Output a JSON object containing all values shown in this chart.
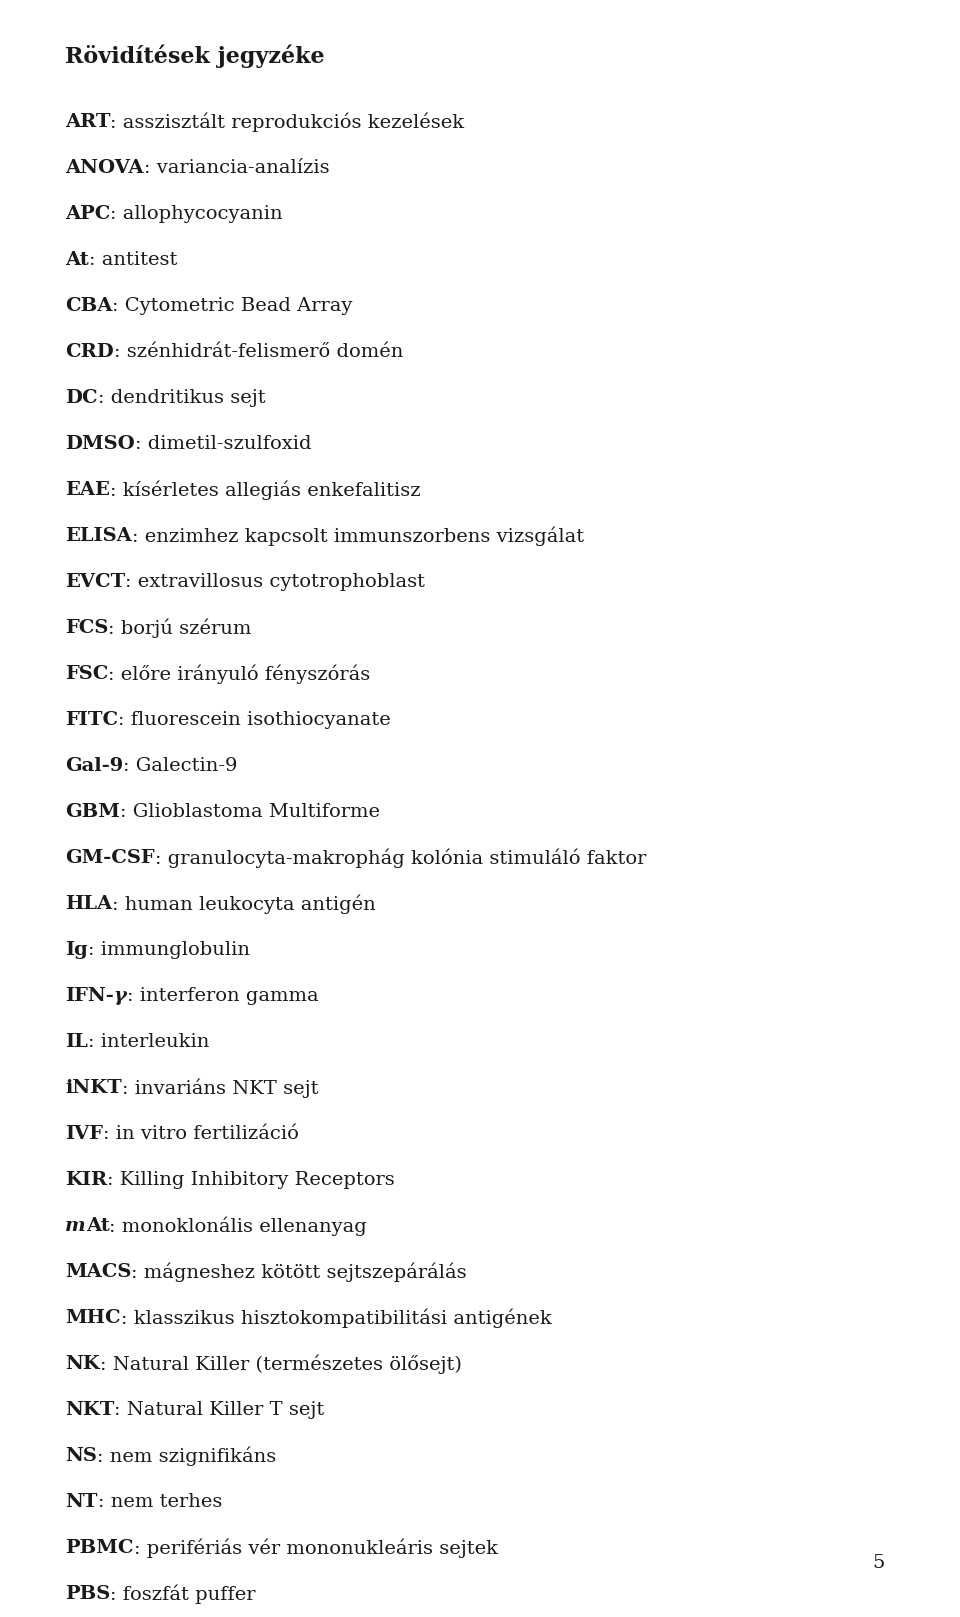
{
  "title": "Rövidítések jegyzéke",
  "entries": [
    {
      "bold": "ART",
      "rest": ": asszisztált reprodukciós kezelések"
    },
    {
      "bold": "ANOVA",
      "rest": ": variancia-analízis"
    },
    {
      "bold": "APC",
      "rest": ": allophycocyanin"
    },
    {
      "bold": "At",
      "rest": ": antitest"
    },
    {
      "bold": "CBA",
      "rest": ": Cytometric Bead Array"
    },
    {
      "bold": "CRD",
      "rest": ": szénhidrát-felismerő domén"
    },
    {
      "bold": "DC",
      "rest": ": dendritikus sejt"
    },
    {
      "bold": "DMSO",
      "rest": ": dimetil-szulfoxid"
    },
    {
      "bold": "EAE",
      "rest": ": kísérletes allegiás enkefalitisz"
    },
    {
      "bold": "ELISA",
      "rest": ": enzimhez kapcsolt immunszorbens vizsgálat"
    },
    {
      "bold": "EVCT",
      "rest": ": extravillosus cytotrophoblast"
    },
    {
      "bold": "FCS",
      "rest": ": borjú szérum"
    },
    {
      "bold": "FSC",
      "rest": ": előre irányuló fényszórás"
    },
    {
      "bold": "FITC",
      "rest": ": fluorescein isothiocyanate"
    },
    {
      "bold": "Gal-9",
      "rest": ": Galectin-9"
    },
    {
      "bold": "GBM",
      "rest": ": Glioblastoma Multiforme"
    },
    {
      "bold": "GM-CSF",
      "rest": ": granulocyta-makrophág kolónia stimuláló faktor"
    },
    {
      "bold": "HLA",
      "rest": ": human leukocyta antigén"
    },
    {
      "bold": "Ig",
      "rest": ": immunglobulin"
    },
    {
      "bold": "IFN-γ",
      "rest": ": interferon gamma"
    },
    {
      "bold": "IL",
      "rest": ": interleukin"
    },
    {
      "bold": "iNKT",
      "rest": ": invariáns NKT sejt"
    },
    {
      "bold": "IVF",
      "rest": ": in vitro fertilizáció"
    },
    {
      "bold": "KIR",
      "rest": ": Killing Inhibitory Receptors"
    },
    {
      "bold": "mAt",
      "rest": ": monoklonális ellenanyag"
    },
    {
      "bold": "MACS",
      "rest": ": mágneshez kötött sejtszepárálás"
    },
    {
      "bold": "MHC",
      "rest": ": klasszikus hisztokompatibilitási antigének"
    },
    {
      "bold": "NK",
      "rest": ": Natural Killer (természetes ölősejt)"
    },
    {
      "bold": "NKT",
      "rest": ": Natural Killer T sejt"
    },
    {
      "bold": "NS",
      "rest": ": nem szignifikáns"
    },
    {
      "bold": "NT",
      "rest": ": nem terhes"
    },
    {
      "bold": "PBMC",
      "rest": ": perifériás vér mononukleáris sejtek"
    },
    {
      "bold": "PBS",
      "rest": ": foszfát puffer"
    }
  ],
  "page_number": "5",
  "background_color": "#ffffff",
  "text_color": "#1a1a1a",
  "title_fontsize": 16,
  "entry_fontsize": 14,
  "font_family": "DejaVu Serif"
}
